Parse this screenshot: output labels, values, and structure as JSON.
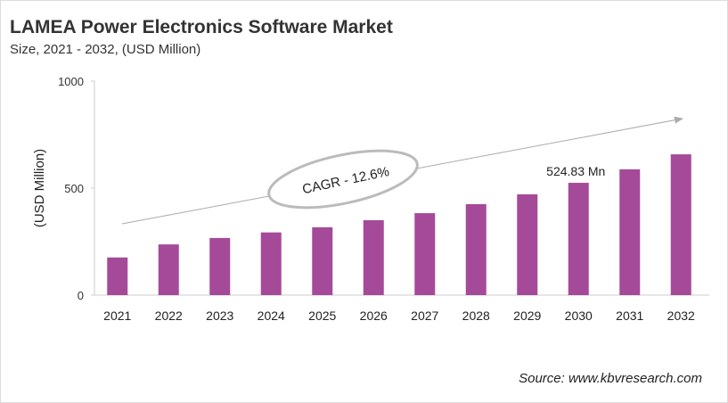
{
  "chart_data": {
    "type": "bar",
    "title": "LAMEA Power Electronics Software Market",
    "subtitle": "Size, 2021 - 2032, (USD Million)",
    "xlabel": "",
    "ylabel": "(USD Million)",
    "ylim": [
      0,
      1000
    ],
    "yticks": [
      0,
      500,
      1000
    ],
    "categories": [
      "2021",
      "2022",
      "2023",
      "2024",
      "2025",
      "2026",
      "2027",
      "2028",
      "2029",
      "2030",
      "2031",
      "2032"
    ],
    "values": [
      176,
      237,
      267,
      293,
      317,
      350,
      383,
      425,
      471,
      524.83,
      588,
      658
    ],
    "bar_color": "#A54A98",
    "annotations": {
      "cagr": "CAGR - 12.6%",
      "value_label": "524.83 Mn",
      "value_label_category": "2030"
    },
    "grid": false
  },
  "source": "Source: www.kbvresearch.com"
}
